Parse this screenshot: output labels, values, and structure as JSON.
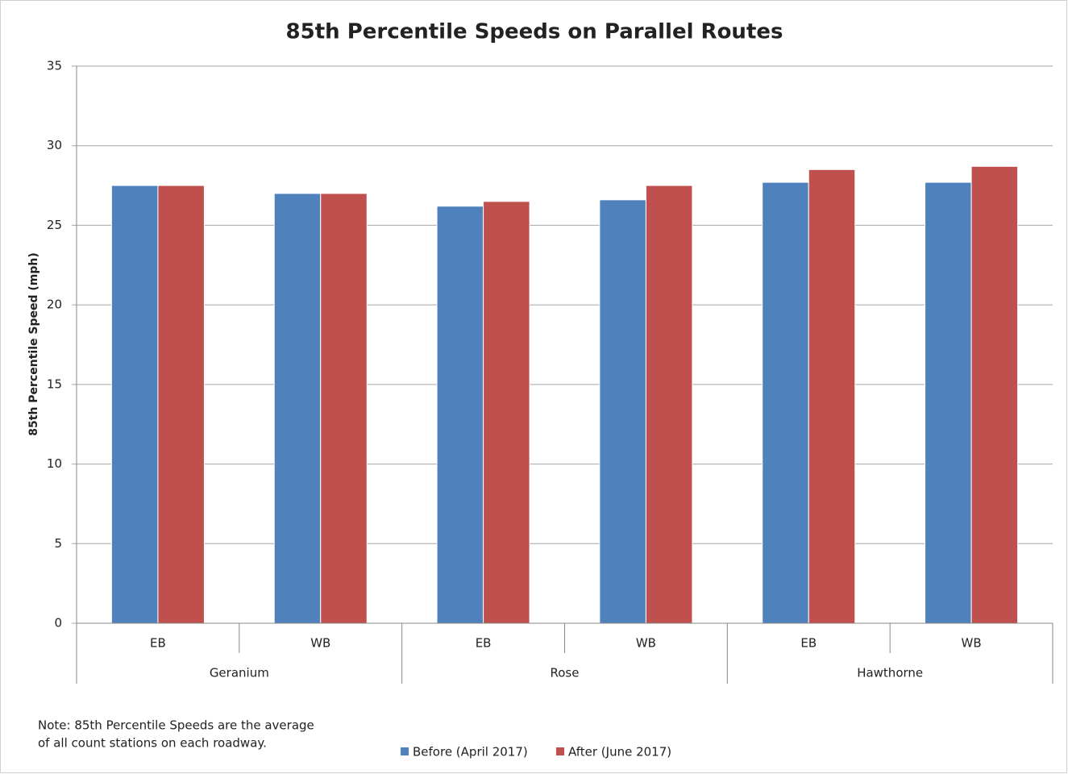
{
  "chart_data": {
    "type": "bar",
    "title": "85th Percentile Speeds on Parallel Routes",
    "y_label": "85th Percentile Speed (mph)",
    "groups": [
      {
        "name": "Geranium",
        "categories": [
          "EB",
          "WB"
        ]
      },
      {
        "name": "Rose",
        "categories": [
          "EB",
          "WB"
        ]
      },
      {
        "name": "Hawthorne",
        "categories": [
          "EB",
          "WB"
        ]
      }
    ],
    "series": [
      {
        "name": "Before (April 2017)",
        "color": "#4f81bd",
        "values": [
          27.5,
          27.0,
          26.2,
          26.6,
          27.7,
          27.7
        ]
      },
      {
        "name": "After (June 2017)",
        "color": "#c0504d",
        "values": [
          27.5,
          27.0,
          26.5,
          27.5,
          28.5,
          28.7
        ]
      }
    ],
    "ylim": [
      0,
      35
    ],
    "yticks": [
      0,
      5,
      10,
      15,
      20,
      25,
      30,
      35
    ],
    "grid": true,
    "legend": "bottom",
    "note": [
      "Note: 85th Percentile Speeds are the average",
      "of all count stations on each roadway."
    ]
  }
}
